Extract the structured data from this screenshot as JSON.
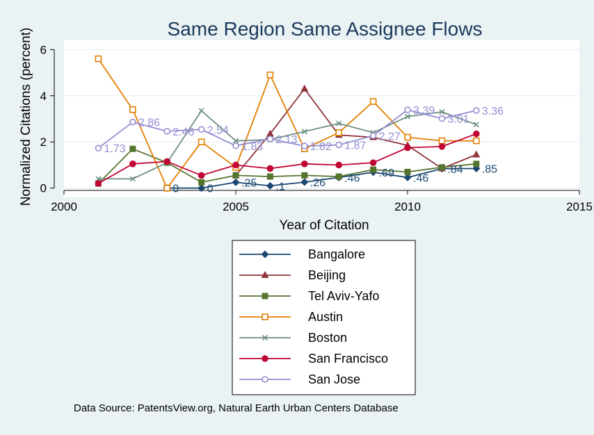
{
  "chart_data": {
    "type": "line",
    "title": "Same Region Same Assignee Flows",
    "xlabel": "Year of Citation",
    "ylabel": "Normalized Citations (percent)",
    "xlim": [
      2000,
      2015
    ],
    "ylim": [
      -0.4,
      6.4
    ],
    "xticks": [
      2000,
      2005,
      2010,
      2015
    ],
    "yticks": [
      0,
      2,
      4,
      6
    ],
    "grid": true,
    "legend_position": "bottom",
    "note": "Data Source: PatentsView.org, Natural Earth Urban Centers Database",
    "series": [
      {
        "name": "Bangalore",
        "color": "#1a476f",
        "marker": "diamond-filled",
        "x": [
          2003,
          2004,
          2005,
          2006,
          2007,
          2008,
          2009,
          2010,
          2011,
          2012
        ],
        "values": [
          0,
          0,
          0.25,
          0.1,
          0.26,
          0.46,
          0.69,
          0.46,
          0.84,
          0.85
        ],
        "labels": [
          "0",
          "0",
          ".25",
          ".1",
          ".26",
          ".46",
          ".69",
          ".46",
          ".84",
          ".85"
        ]
      },
      {
        "name": "Beijing",
        "color": "#90353b",
        "marker": "triangle-filled",
        "x": [
          2005,
          2006,
          2007,
          2008,
          2009,
          2010,
          2011,
          2012
        ],
        "values": [
          0.55,
          2.35,
          4.3,
          2.3,
          2.2,
          1.85,
          0.85,
          1.45
        ]
      },
      {
        "name": "Tel Aviv-Yafo",
        "color": "#55752f",
        "marker": "square-filled",
        "x": [
          2001,
          2002,
          2003,
          2004,
          2005,
          2006,
          2007,
          2008,
          2009,
          2010,
          2011,
          2012
        ],
        "values": [
          0.2,
          1.7,
          1.1,
          0.25,
          0.55,
          0.5,
          0.55,
          0.5,
          0.8,
          0.7,
          0.9,
          1.05
        ]
      },
      {
        "name": "Austin",
        "color": "#e37e00",
        "marker": "square-hollow",
        "x": [
          2001,
          2002,
          2003,
          2004,
          2005,
          2006,
          2007,
          2008,
          2009,
          2010,
          2011,
          2012
        ],
        "values": [
          5.6,
          3.4,
          0,
          2.0,
          0.9,
          4.9,
          1.7,
          2.4,
          3.75,
          2.2,
          2.05,
          2.05
        ]
      },
      {
        "name": "Boston",
        "color": "#6e8e84",
        "marker": "x",
        "x": [
          2001,
          2002,
          2003,
          2004,
          2005,
          2006,
          2007,
          2008,
          2009,
          2010,
          2011,
          2012
        ],
        "values": [
          0.4,
          0.4,
          1.1,
          3.35,
          2.05,
          2.1,
          2.45,
          2.8,
          2.4,
          3.1,
          3.3,
          2.75
        ]
      },
      {
        "name": "San Francisco",
        "color": "#c10534",
        "marker": "circle-filled",
        "x": [
          2001,
          2002,
          2003,
          2004,
          2005,
          2006,
          2007,
          2008,
          2009,
          2010,
          2011,
          2012
        ],
        "values": [
          0.2,
          1.05,
          1.15,
          0.55,
          1.0,
          0.85,
          1.05,
          1.0,
          1.1,
          1.75,
          1.8,
          2.35
        ]
      },
      {
        "name": "San Jose",
        "color": "#938dd2",
        "marker": "circle-hollow",
        "x": [
          2001,
          2002,
          2003,
          2004,
          2005,
          2006,
          2007,
          2008,
          2009,
          2010,
          2011,
          2012
        ],
        "values": [
          1.73,
          2.86,
          2.46,
          2.54,
          1.83,
          2.13,
          1.82,
          1.87,
          2.27,
          3.39,
          3.01,
          3.36
        ],
        "labels": [
          "1.73",
          "2.86",
          "2.46",
          "2.54",
          "1.83",
          "2.13",
          "1.82",
          "1.87",
          "2.27",
          "3.39",
          "3.01",
          "3.36"
        ]
      }
    ]
  }
}
